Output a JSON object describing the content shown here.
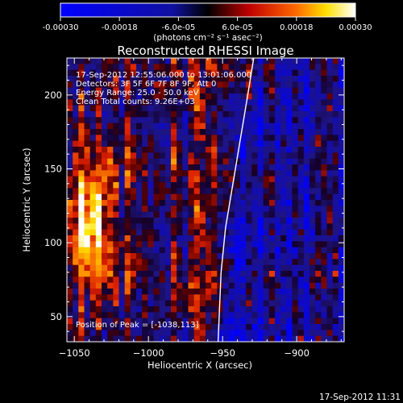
{
  "colorbar": {
    "ticks": [
      "-0.00030",
      "-0.00018",
      "-6.0e-05",
      "6.0e-05",
      "0.00018",
      "0.00030"
    ],
    "tick_values": [
      -0.0003,
      -0.00018,
      -6e-05,
      6e-05,
      0.00018,
      0.0003
    ],
    "range": [
      -0.0003,
      0.0003
    ],
    "units_label": "(photons cm⁻² s⁻¹ asec⁻²)"
  },
  "annotations": {
    "time_range": "17-Sep-2012 12:55:06.000 to 13:01:06.000",
    "detectors": "Detectors: 3F 5F 6F 7F 8F 9F, Att 0",
    "energy": "Energy Range: 25.0 - 50.0 keV",
    "clean": "Clean    Total counts: 9.26E+03",
    "peak": "Position of Peak = [-1038,113]"
  },
  "footer": {
    "timestamp": "17-Sep-2012 11:31"
  },
  "chart_data": {
    "type": "heatmap",
    "title": "Reconstructed RHESSI Image",
    "xlabel": "Heliocentric X (arcsec)",
    "ylabel": "Heliocentric Y (arcsec)",
    "xlim": [
      -1055,
      -868
    ],
    "ylim": [
      33,
      225
    ],
    "xticks": [
      -1050,
      -1000,
      -950,
      -900
    ],
    "yticks": [
      50,
      100,
      150,
      200
    ],
    "xtick_labels": [
      "−1050",
      "−1000",
      "−950",
      "−900"
    ],
    "ytick_labels": [
      "50",
      "100",
      "150",
      "200"
    ],
    "colormap": [
      "#0000ff",
      "#000000",
      "#ff0000",
      "#ffff00",
      "#ffffff"
    ],
    "peak_position": [
      -1038,
      113
    ],
    "limb_curve": [
      [
        -953,
        33
      ],
      [
        -951,
        80
      ],
      [
        -948,
        110
      ],
      [
        -943,
        140
      ],
      [
        -938,
        170
      ],
      [
        -933,
        200
      ],
      [
        -929,
        225
      ]
    ],
    "heatmap_grid": {
      "nx": 48,
      "ny": 48,
      "seed": 7
    }
  }
}
